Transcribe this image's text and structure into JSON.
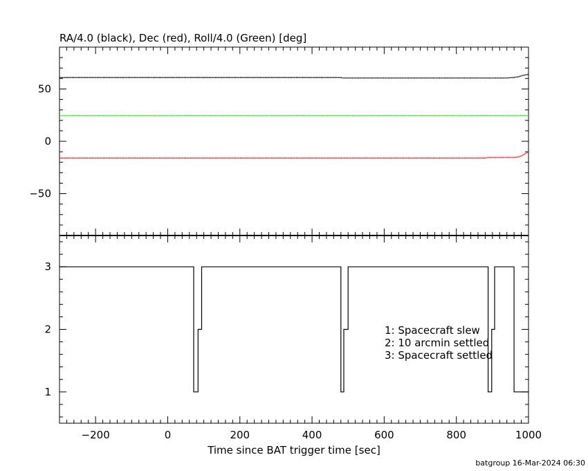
{
  "footer": "batgroup 16-Mar-2024 06:30",
  "colors": {
    "ra": "#000000",
    "dec": "#ff0000",
    "roll": "#00e000",
    "status": "#000000"
  },
  "chart_data": [
    {
      "type": "line",
      "title": "RA/4.0 (black), Dec (red), Roll/4.0 (Green) [deg]",
      "xlim": [
        -300,
        1000
      ],
      "ylim": [
        -90,
        90
      ],
      "y_ticks": [
        50,
        0,
        -50
      ],
      "grid": false,
      "series": [
        {
          "key": "ra",
          "color": "#000000",
          "x": [
            -300,
            480,
            485,
            880,
            940,
            960,
            970,
            985,
            1000
          ],
          "y": [
            61,
            61,
            60.5,
            60.5,
            60.5,
            61,
            61.5,
            63,
            64
          ]
        },
        {
          "key": "roll",
          "color": "#00e000",
          "x": [
            -300,
            1000
          ],
          "y": [
            24.5,
            24.5
          ]
        },
        {
          "key": "dec",
          "color": "#ff0000",
          "x": [
            -300,
            480,
            485,
            880,
            890,
            900,
            960,
            970,
            980,
            990,
            1000
          ],
          "y": [
            -16,
            -16,
            -16,
            -16,
            -15.5,
            -15.5,
            -15.5,
            -15,
            -14,
            -12,
            -10
          ]
        }
      ]
    },
    {
      "type": "line",
      "xlabel": "Time since BAT trigger time [sec]",
      "xlim": [
        -300,
        1000
      ],
      "ylim": [
        0.5,
        3.5
      ],
      "x_ticks": [
        -200,
        0,
        200,
        400,
        600,
        800,
        1000
      ],
      "y_ticks": [
        3,
        2,
        1
      ],
      "grid": false,
      "step": true,
      "series": [
        {
          "key": "status",
          "color": "#000000",
          "x": [
            -300,
            72,
            72,
            84,
            84,
            94,
            94,
            480,
            480,
            488,
            488,
            500,
            500,
            888,
            888,
            898,
            898,
            906,
            906,
            960,
            960,
            1000
          ],
          "y": [
            3,
            3,
            1,
            1,
            2,
            2,
            3,
            3,
            1,
            1,
            2,
            2,
            3,
            3,
            1,
            1,
            2,
            2,
            3,
            3,
            1,
            1
          ]
        }
      ],
      "annotations": [
        "1: Spacecraft slew",
        "2: 10 arcmin settled",
        "3: Spacecraft settled"
      ]
    }
  ]
}
